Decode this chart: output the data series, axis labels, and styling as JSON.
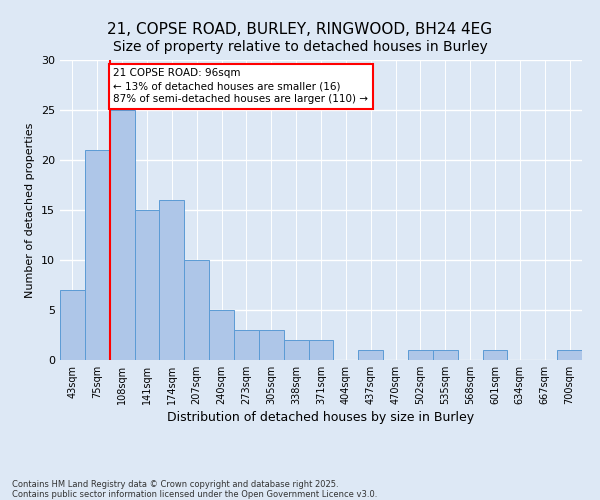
{
  "title1": "21, COPSE ROAD, BURLEY, RINGWOOD, BH24 4EG",
  "title2": "Size of property relative to detached houses in Burley",
  "xlabel": "Distribution of detached houses by size in Burley",
  "ylabel": "Number of detached properties",
  "categories": [
    "43sqm",
    "75sqm",
    "108sqm",
    "141sqm",
    "174sqm",
    "207sqm",
    "240sqm",
    "273sqm",
    "305sqm",
    "338sqm",
    "371sqm",
    "404sqm",
    "437sqm",
    "470sqm",
    "502sqm",
    "535sqm",
    "568sqm",
    "601sqm",
    "634sqm",
    "667sqm",
    "700sqm"
  ],
  "values": [
    7,
    21,
    25,
    15,
    16,
    10,
    5,
    3,
    3,
    2,
    2,
    0,
    1,
    0,
    1,
    1,
    0,
    1,
    0,
    0,
    1
  ],
  "bar_color": "#aec6e8",
  "bar_edgecolor": "#5b9bd5",
  "bg_color": "#dde8f5",
  "vline_x": 1.5,
  "vline_color": "red",
  "annotation_text": "21 COPSE ROAD: 96sqm\n← 13% of detached houses are smaller (16)\n87% of semi-detached houses are larger (110) →",
  "annotation_box_color": "white",
  "annotation_box_edgecolor": "red",
  "ylim": [
    0,
    30
  ],
  "yticks": [
    0,
    5,
    10,
    15,
    20,
    25,
    30
  ],
  "footnote": "Contains HM Land Registry data © Crown copyright and database right 2025.\nContains public sector information licensed under the Open Government Licence v3.0.",
  "title_fontsize": 11,
  "subtitle_fontsize": 10,
  "xlabel_fontsize": 9,
  "ylabel_fontsize": 8,
  "annot_fontsize": 7.5,
  "tick_fontsize": 7,
  "ytick_fontsize": 8,
  "footnote_fontsize": 6
}
